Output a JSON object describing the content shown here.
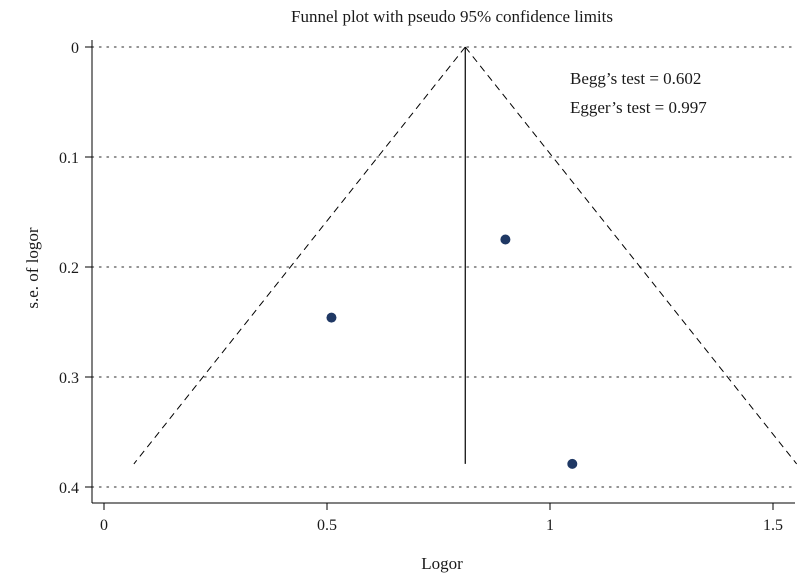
{
  "chart_data": {
    "type": "scatter",
    "title": "Funnel plot with pseudo 95% confidence limits",
    "xlabel": "Logor",
    "ylabel": "s.e. of logor",
    "xlim": [
      0,
      1.55
    ],
    "ylim": [
      0,
      0.41
    ],
    "y_axis_inverted": true,
    "grid": "horizontal dotted",
    "x_ticks": [
      0,
      0.5,
      1,
      1.5
    ],
    "x_tick_labels": [
      "0",
      "0.5",
      "1",
      "1.5"
    ],
    "y_ticks": [
      0,
      0.1,
      0.2,
      0.3,
      0.4
    ],
    "y_tick_labels": [
      "0",
      "0.1",
      "0.2",
      "0.3",
      "0.4"
    ],
    "points": [
      {
        "x": 0.51,
        "y": 0.246
      },
      {
        "x": 0.9,
        "y": 0.175
      },
      {
        "x": 1.05,
        "y": 0.379
      }
    ],
    "pooled_estimate": 0.81,
    "max_se": 0.379,
    "funnel_limits": {
      "apex": {
        "x": 0.81,
        "y": 0
      },
      "lower_left": {
        "x": 0.067,
        "y": 0.379
      },
      "lower_right": {
        "x": 1.553,
        "y": 0.379
      }
    },
    "annotations": [
      "Begg’s test = 0.602",
      "Egger’s test = 0.997"
    ],
    "colors": {
      "points": "#1f3864",
      "lines": "#000000",
      "grid": "#555555"
    }
  }
}
